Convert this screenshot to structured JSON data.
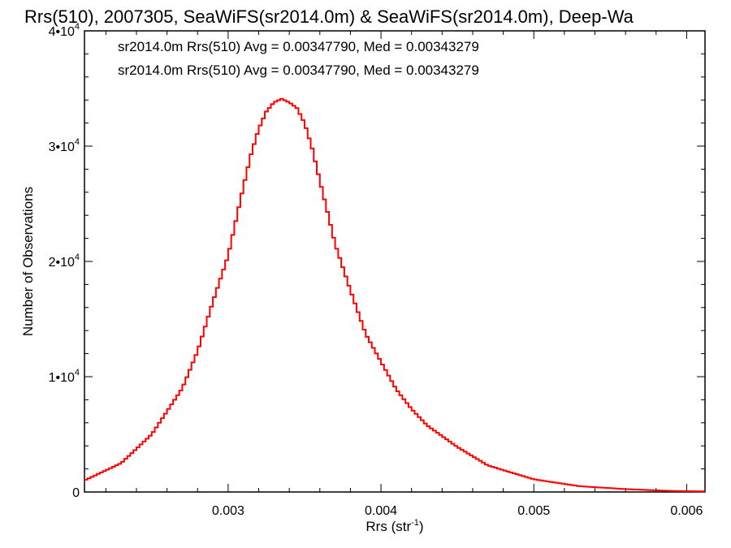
{
  "chart_data": {
    "type": "histogram",
    "title": "Rrs(510), 2007305, SeaWiFS(sr2014.0m) & SeaWiFS(sr2014.0m), Deep-Wa",
    "xlabel": "Rrs (str",
    "xlabel_sup": "-1",
    "xlabel_suffix": ")",
    "ylabel": "Number of Observations",
    "xlim": [
      0.00206,
      0.00612
    ],
    "ylim": [
      0,
      40000
    ],
    "x_ticks": [
      0.003,
      0.004,
      0.005,
      0.006
    ],
    "x_tick_labels": [
      "0.003",
      "0.004",
      "0.005",
      "0.006"
    ],
    "y_ticks": [
      0,
      10000,
      20000,
      30000,
      40000
    ],
    "y_tick_labels": [
      {
        "base": "0",
        "exp": ""
      },
      {
        "base": "1•10",
        "exp": "4"
      },
      {
        "base": "2•10",
        "exp": "4"
      },
      {
        "base": "3•10",
        "exp": "4"
      },
      {
        "base": "4•10",
        "exp": "4"
      }
    ],
    "annotations": [
      {
        "text": "sr2014.0m Rrs(510) Avg = 0.00347790, Med = 0.00343279",
        "color": "#000000"
      },
      {
        "text": "sr2014.0m Rrs(510) Avg = 0.00347790, Med = 0.00343279",
        "color": "#ff0000"
      }
    ],
    "series": [
      {
        "color": "#ff0000",
        "x": [
          0.00206,
          0.0023,
          0.0025,
          0.0027,
          0.0028,
          0.0029,
          0.003,
          0.00305,
          0.0031,
          0.00315,
          0.0032,
          0.00325,
          0.0033,
          0.00335,
          0.0034,
          0.00345,
          0.0035,
          0.00355,
          0.0036,
          0.00365,
          0.0037,
          0.0038,
          0.0039,
          0.004,
          0.0041,
          0.0042,
          0.0043,
          0.0045,
          0.0047,
          0.005,
          0.0053,
          0.0056,
          0.0059,
          0.00612
        ],
        "y": [
          1000,
          2500,
          5000,
          9000,
          12200,
          16500,
          20500,
          23500,
          26500,
          29300,
          31500,
          33000,
          33800,
          34100,
          33800,
          33300,
          32000,
          29800,
          27000,
          24300,
          21500,
          17500,
          13700,
          11300,
          8900,
          7200,
          5800,
          3900,
          2300,
          1100,
          500,
          250,
          90,
          50
        ]
      }
    ]
  }
}
